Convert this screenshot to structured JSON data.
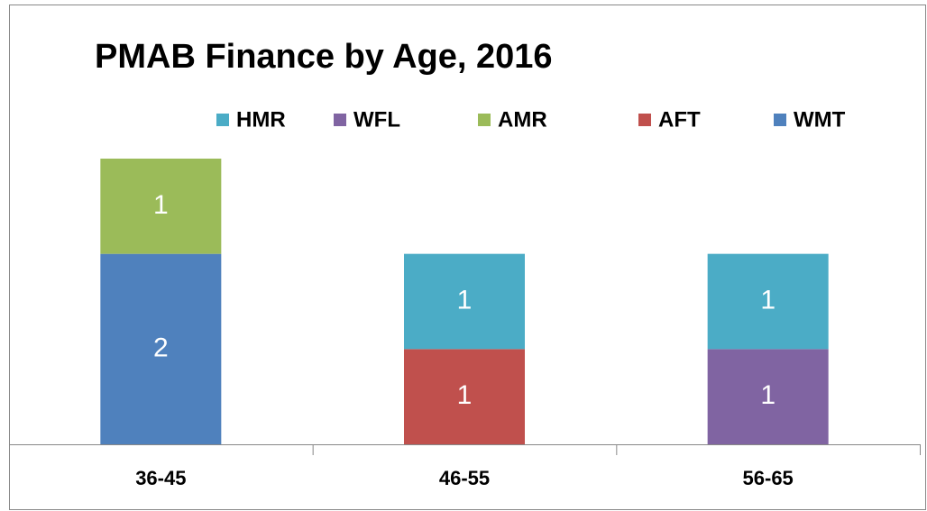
{
  "chart_data": {
    "type": "stacked_bar",
    "title": "PMAB Finance by Age, 2016",
    "categories": [
      "36-45",
      "46-55",
      "56-65"
    ],
    "series": [
      {
        "name": "HMR",
        "color": "#4bacc6",
        "values": [
          null,
          1,
          1
        ]
      },
      {
        "name": "WFL",
        "color": "#8064a2",
        "values": [
          null,
          null,
          1
        ]
      },
      {
        "name": "AMR",
        "color": "#9bbb59",
        "values": [
          1,
          null,
          null
        ]
      },
      {
        "name": "AFT",
        "color": "#c0504d",
        "values": [
          null,
          1,
          null
        ]
      },
      {
        "name": "WMT",
        "color": "#4f81bd",
        "values": [
          2,
          null,
          null
        ]
      }
    ]
  }
}
